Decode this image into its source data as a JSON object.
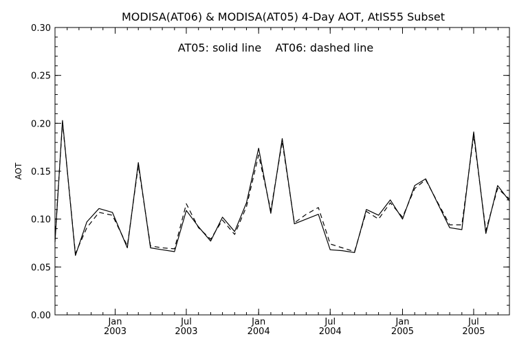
{
  "chart_data": {
    "type": "line",
    "title": "MODISA(AT06) & MODISA(AT05) 4-Day AOT, AtIS55 Subset",
    "annotation": "AT05: solid line    AT06: dashed line",
    "xlabel": "",
    "ylabel": "AOT",
    "ylim": [
      0.0,
      0.3
    ],
    "xlim": [
      "2002-08-01",
      "2005-09-30"
    ],
    "grid": false,
    "y_ticks": [
      "0.00",
      "0.05",
      "0.10",
      "0.15",
      "0.20",
      "0.25",
      "0.30"
    ],
    "x_ticks": [
      {
        "date": "2003-01-01",
        "month": "Jan",
        "year": "2003"
      },
      {
        "date": "2003-07-01",
        "month": "Jul",
        "year": "2003"
      },
      {
        "date": "2004-01-01",
        "month": "Jan",
        "year": "2004"
      },
      {
        "date": "2004-07-01",
        "month": "Jul",
        "year": "2004"
      },
      {
        "date": "2005-01-01",
        "month": "Jan",
        "year": "2005"
      },
      {
        "date": "2005-07-01",
        "month": "Jul",
        "year": "2005"
      }
    ],
    "series": [
      {
        "name": "AT05",
        "style": "solid",
        "color": "#000000",
        "x": [
          "2002-08-01",
          "2002-08-20",
          "2002-09-22",
          "2002-10-21",
          "2002-11-21",
          "2002-12-25",
          "2003-02-01",
          "2003-03-01",
          "2003-04-01",
          "2003-05-01",
          "2003-06-01",
          "2003-07-01",
          "2003-08-01",
          "2003-09-01",
          "2003-10-01",
          "2003-11-01",
          "2003-12-01",
          "2004-01-01",
          "2004-02-01",
          "2004-03-01",
          "2004-04-01",
          "2004-05-01",
          "2004-06-01",
          "2004-07-01",
          "2004-08-01",
          "2004-09-01",
          "2004-10-01",
          "2004-11-01",
          "2004-12-01",
          "2005-01-01",
          "2005-02-01",
          "2005-03-01",
          "2005-04-01",
          "2005-05-01",
          "2005-06-01",
          "2005-07-01",
          "2005-08-01",
          "2005-08-31",
          "2005-09-30"
        ],
        "y": [
          0.076,
          0.203,
          0.062,
          0.097,
          0.111,
          0.107,
          0.07,
          0.159,
          0.07,
          0.068,
          0.066,
          0.109,
          0.092,
          0.077,
          0.102,
          0.087,
          0.117,
          0.174,
          0.106,
          0.184,
          0.095,
          0.1,
          0.105,
          0.068,
          0.067,
          0.065,
          0.11,
          0.104,
          0.12,
          0.1,
          0.135,
          0.142,
          0.116,
          0.091,
          0.089,
          0.191,
          0.085,
          0.135,
          0.119
        ]
      },
      {
        "name": "AT06",
        "style": "dashed",
        "color": "#000000",
        "x": [
          "2002-08-01",
          "2002-08-20",
          "2002-09-22",
          "2002-10-21",
          "2002-11-21",
          "2002-12-25",
          "2003-02-01",
          "2003-03-01",
          "2003-04-01",
          "2003-05-01",
          "2003-06-01",
          "2003-07-01",
          "2003-08-01",
          "2003-09-01",
          "2003-10-01",
          "2003-11-01",
          "2003-12-01",
          "2004-01-01",
          "2004-02-01",
          "2004-03-01",
          "2004-04-01",
          "2004-05-01",
          "2004-06-01",
          "2004-07-01",
          "2004-08-01",
          "2004-09-01",
          "2004-10-01",
          "2004-11-01",
          "2004-12-01",
          "2005-01-01",
          "2005-02-01",
          "2005-03-01",
          "2005-04-01",
          "2005-05-01",
          "2005-06-01",
          "2005-07-01",
          "2005-08-01",
          "2005-08-31",
          "2005-09-30"
        ],
        "y": [
          0.079,
          0.201,
          0.064,
          0.091,
          0.107,
          0.104,
          0.072,
          0.156,
          0.072,
          0.07,
          0.069,
          0.116,
          0.091,
          0.079,
          0.099,
          0.084,
          0.113,
          0.167,
          0.109,
          0.181,
          0.096,
          0.105,
          0.112,
          0.074,
          0.07,
          0.066,
          0.108,
          0.1,
          0.117,
          0.102,
          0.132,
          0.141,
          0.117,
          0.094,
          0.094,
          0.187,
          0.088,
          0.132,
          0.121
        ]
      }
    ]
  }
}
